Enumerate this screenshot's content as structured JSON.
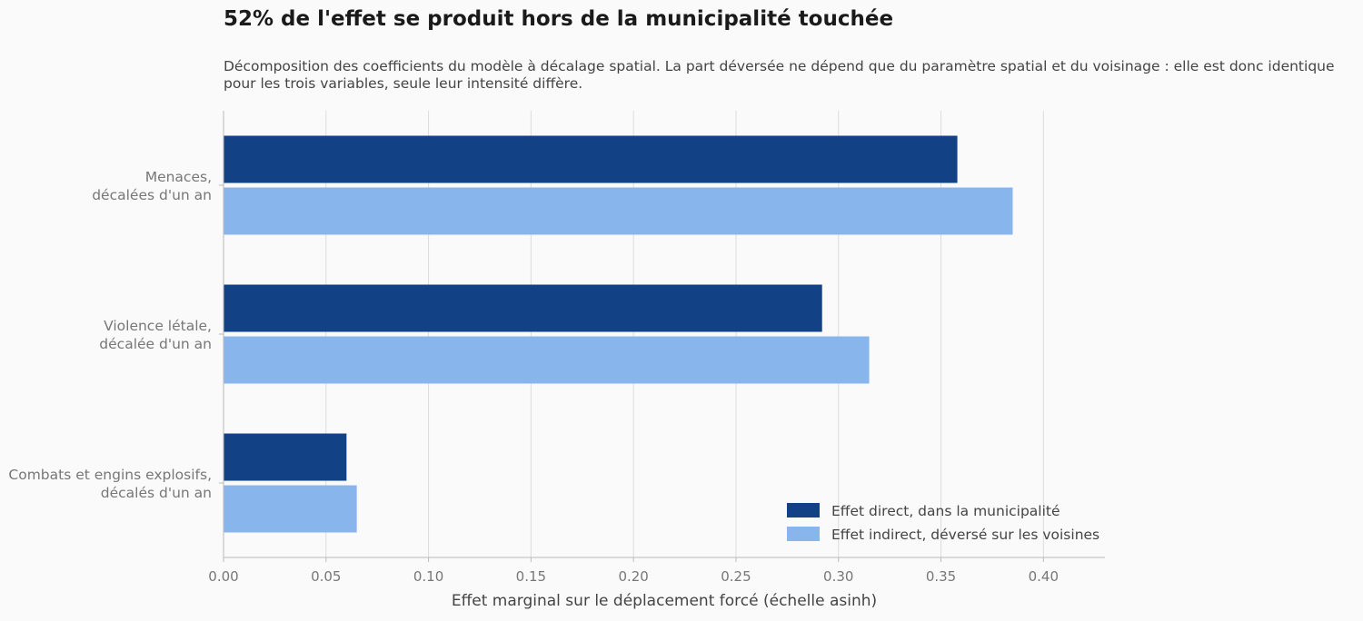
{
  "title": "52% de l'effet se produit hors de la municipalité touchée",
  "subtitle": "Décomposition des coefficients du modèle à décalage spatial. La part déversée ne dépend que du paramètre spatial et du voisinage : elle est donc identique pour les trois variables, seule leur intensité diffère.",
  "colors": {
    "direct": "#124185",
    "indirect": "#89b5ed",
    "grid": "#dcdcdc",
    "axis": "#bbbbbb"
  },
  "chart_data": {
    "type": "bar",
    "orientation": "horizontal",
    "title": "52% de l'effet se produit hors de la municipalité touchée",
    "categories": [
      [
        "Menaces,",
        "décalées d'un an"
      ],
      [
        "Violence létale,",
        "décalée d'un an"
      ],
      [
        "Combats et engins explosifs,",
        "décalés d'un an"
      ]
    ],
    "series": [
      {
        "name": "Effet direct, dans la municipalité",
        "values": [
          0.358,
          0.292,
          0.06
        ]
      },
      {
        "name": "Effet indirect, déversé sur les voisines",
        "values": [
          0.385,
          0.315,
          0.065
        ]
      }
    ],
    "xlabel": "Effet marginal sur le déplacement forcé (échelle asinh)",
    "xlim": [
      0,
      0.43
    ],
    "xticks": [
      "0.00",
      "0.05",
      "0.10",
      "0.15",
      "0.20",
      "0.25",
      "0.30",
      "0.35",
      "0.40"
    ],
    "grid": true,
    "legend_position": "bottom-right"
  }
}
